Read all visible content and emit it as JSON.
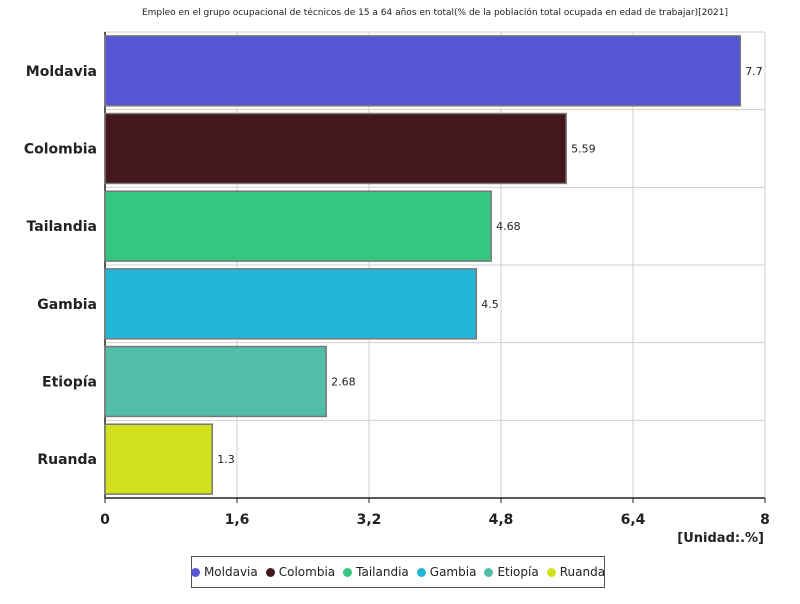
{
  "chart_data": {
    "type": "bar",
    "orientation": "horizontal",
    "title": "Empleo en el grupo ocupacional de técnicos de 15 a 64 años en total(% de la población total ocupada en edad de trabajar)[2021]",
    "unit_label": "[Unidad:.%]",
    "categories": [
      "Moldavia",
      "Colombia",
      "Tailandia",
      "Gambia",
      "Etiopía",
      "Ruanda"
    ],
    "values": [
      7.7,
      5.59,
      4.68,
      4.5,
      2.68,
      1.3
    ],
    "value_labels": [
      "7.7",
      "5.59",
      "4.68",
      "4.5",
      "2.68",
      "1.3"
    ],
    "colors": [
      "#5555d5",
      "#43171d",
      "#35c680",
      "#22b5d5",
      "#52bda8",
      "#d3e01e"
    ],
    "xlim": [
      0,
      8
    ],
    "xticks": [
      0,
      1.6,
      3.2,
      4.8,
      6.4,
      8
    ],
    "xtick_labels": [
      "0",
      "1,6",
      "3,2",
      "4,8",
      "6,4",
      "8"
    ],
    "grid": true,
    "legend_position": "bottom"
  }
}
